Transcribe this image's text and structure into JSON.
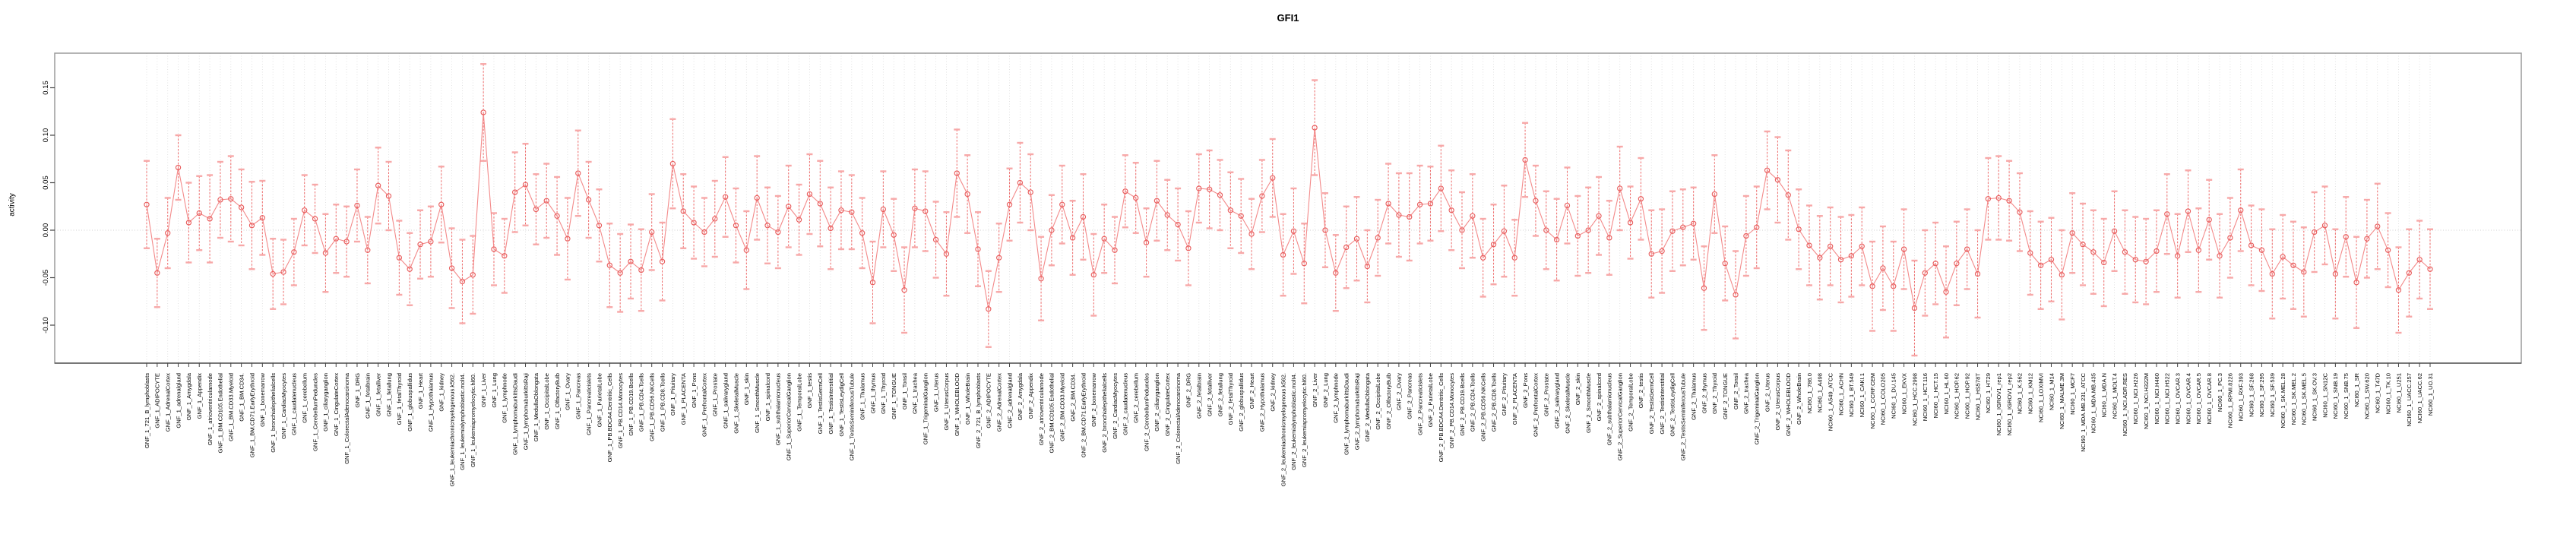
{
  "title": "GFI1",
  "y_axis": {
    "label": "activity",
    "tick_labels": [
      "0.15",
      "0.10",
      "0.05",
      "0.00",
      "-0.05",
      "-0.10"
    ],
    "tick_values": [
      0.15,
      0.1,
      0.05,
      0.0,
      -0.05,
      -0.1
    ]
  },
  "colors": {
    "point": "#e85c5c",
    "line": "#f38a8a",
    "errorbar": "#ef6a6a",
    "errorbar_cap": "#f7a8a8",
    "gridline": "#dcdcdc",
    "zero_line": "#d0d0d0",
    "box_border": "#9b9b9b",
    "axis": "#444444",
    "text": "#000000"
  },
  "chart_data": {
    "type": "line",
    "subtype": "points-with-error-bars",
    "title": "GFI1",
    "xlabel": "",
    "ylabel": "activity",
    "ylim": [
      -0.14,
      0.186
    ],
    "yticks": [
      0.15,
      0.1,
      0.05,
      0.0,
      -0.05,
      -0.1
    ],
    "grid": "vertical-dotted-per-sample",
    "zero_line": true,
    "legend": "none",
    "categories": [
      "GNF_1_721_B_lymphoblasts",
      "GNF_1_ADIPOCYTE",
      "GNF_1_AdrenalCortex",
      "GNF_1_adrenalgland",
      "GNF_1_Amygdala",
      "GNF_1_Appendix",
      "GNF_1_atrioventricularnode",
      "GNF_1_BM.CD105.Endothelial",
      "GNF_1_BM.CD33.Myeloid",
      "GNF_1_BM.CD34.",
      "GNF_1_BM.CD71.EarlyErythroid",
      "GNF_1_bonemarrow",
      "GNF_1_bronchialepithelialcells",
      "GNF_1_CardiacMyocytes",
      "GNF_1_caudatenucleus",
      "GNF_1_cerebellum",
      "GNF_1_CerebellumPeduncles",
      "GNF_1_ciliaryganglion",
      "GNF_1_CingulateCortex",
      "GNF_1_ColorectalAdenocarcinoma",
      "GNF_1_DRG",
      "GNF_1_fetalbrain",
      "GNF_1_fetalliver",
      "GNF_1_fetallung",
      "GNF_1_fetalThyroid",
      "GNF_1_globuspallidus",
      "GNF_1_Heart",
      "GNF_1_Hypothalamus",
      "GNF_1_kidney",
      "GNF_1_leukemiachronicmyelogenous.k562.",
      "GNF_1_leukemialymphoblastic.molt4.",
      "GNF_1_leukemiapromyelocytic.hl60.",
      "GNF_1_Liver",
      "GNF_1_Lung",
      "GNF_1_lymphnode",
      "GNF_1_lymphomaburkittsDaudi",
      "GNF_1_lymphomaburkittsRaji",
      "GNF_1_MedullaOblongata",
      "GNF_1_OccipitalLobe",
      "GNF_1_OlfactoryBulb",
      "GNF_1_Ovary",
      "GNF_1_Pancreas",
      "GNF_1_Pancreaticislets",
      "GNF_1_ParietalLobe",
      "GNF_1_PB.BDCA4.Dentritic_Cells",
      "GNF_1_PB.CD14.Monocytes",
      "GNF_1_PB.CD19.Bcells",
      "GNF_1_PB.CD4.Tcells",
      "GNF_1_PB.CD56.NKCells",
      "GNF_1_PB.CD8.Tcells",
      "GNF_1_Pituitary",
      "GNF_1_PLACENTA",
      "GNF_1_Pons",
      "GNF_1_PrefrontalCortex",
      "GNF_1_Prostate",
      "GNF_1_salivarygland",
      "GNF_1_SkeletalMuscle",
      "GNF_1_skin",
      "GNF_1_SmoothMuscle",
      "GNF_1_spinalcord",
      "GNF_1_subthalamicnucleus",
      "GNF_1_SuperiorCervicalGanglion",
      "GNF_1_TemporalLobe",
      "GNF_1_testis",
      "GNF_1_TestisGermCell",
      "GNF_1_TestisInterstitial",
      "GNF_1_TestisLeydigCell",
      "GNF_1_TestisSeminiferousTubule",
      "GNF_1_Thalamus",
      "GNF_1_thymus",
      "GNF_1_Thyroid",
      "GNF_1_TONGUE",
      "GNF_1_Tonsil",
      "GNF_1_trachea",
      "GNF_1_TrigeminalGanglion",
      "GNF_1_Uterus",
      "GNF_1_UterusCorpus",
      "GNF_1_WHOLEBLOOD",
      "GNF_1_WholeBrain",
      "GNF_2_721_B_lymphoblasts",
      "GNF_2_ADIPOCYTE",
      "GNF_2_AdrenalCortex",
      "GNF_2_adrenalgland",
      "GNF_2_Amygdala",
      "GNF_2_Appendix",
      "GNF_2_atrioventricularnode",
      "GNF_2_BM.CD105.Endothelial",
      "GNF_2_BM.CD33.Myeloid",
      "GNF_2_BM.CD34.",
      "GNF_2_BM.CD71.EarlyErythroid",
      "GNF_2_bonemarrow",
      "GNF_2_bronchialepithelialcells",
      "GNF_2_CardiacMyocytes",
      "GNF_2_caudatenucleus",
      "GNF_2_cerebellum",
      "GNF_2_CerebellumPeduncles",
      "GNF_2_ciliaryganglion",
      "GNF_2_CingulateCortex",
      "GNF_2_ColorectalAdenocarcinoma",
      "GNF_2_DRG",
      "GNF_2_fetalbrain",
      "GNF_2_fetalliver",
      "GNF_2_fetallung",
      "GNF_2_fetalThyroid",
      "GNF_2_globuspallidus",
      "GNF_2_Heart",
      "GNF_2_Hypothalamus",
      "GNF_2_kidney",
      "GNF_2_leukemiachronicmyelogenous.k562.",
      "GNF_2_leukemialymphoblastic.molt4.",
      "GNF_2_leukemiapromyelocytic.hl60.",
      "GNF_2_Liver",
      "GNF_2_Lung",
      "GNF_2_lymphnode",
      "GNF_2_lymphomaburkittsDaudi",
      "GNF_2_lymphomaburkittsRaji",
      "GNF_2_MedullaOblongata",
      "GNF_2_OccipitalLobe",
      "GNF_2_OlfactoryBulb",
      "GNF_2_Ovary",
      "GNF_2_Pancreas",
      "GNF_2_Pancreaticislets",
      "GNF_2_ParietalLobe",
      "GNF_2_PB.BDCA4.Dentritic_Cells",
      "GNF_2_PB.CD14.Monocytes",
      "GNF_2_PB.CD19.Bcells",
      "GNF_2_PB.CD4.Tcells",
      "GNF_2_PB.CD56.NKCells",
      "GNF_2_PB.CD8.Tcells",
      "GNF_2_Pituitary",
      "GNF_2_PLACENTA",
      "GNF_2_Pons",
      "GNF_2_PrefrontalCortex",
      "GNF_2_Prostate",
      "GNF_2_salivarygland",
      "GNF_2_SkeletalMuscle",
      "GNF_2_skin",
      "GNF_2_SmoothMuscle",
      "GNF_2_spinalcord",
      "GNF_2_subthalamicnucleus",
      "GNF_2_SuperiorCervicalGanglion",
      "GNF_2_TemporalLobe",
      "GNF_2_testis",
      "GNF_2_TestisGermCell",
      "GNF_2_TestisInterstitial",
      "GNF_2_TestisLeydigCell",
      "GNF_2_TestisSeminiferousTubule",
      "GNF_2_Thalamus",
      "GNF_2_thymus",
      "GNF_2_Thyroid",
      "GNF_2_TONGUE",
      "GNF_2_Tonsil",
      "GNF_2_trachea",
      "GNF_2_TrigeminalGanglion",
      "GNF_2_Uterus",
      "GNF_2_UterusCorpus",
      "GNF_2_WHOLEBLOOD",
      "GNF_2_WholeBrain",
      "NCI60_1_786.0",
      "NCI60_1_A498",
      "NCI60_1_A549_ATCC",
      "NCI60_1_ACHN",
      "NCI60_1_BT.549",
      "NCI60_1_CAKI.1",
      "NCI60_1_CCRF.CEM",
      "NCI60_1_COLO205",
      "NCI60_1_DU.145",
      "NCI60_1_EKVX",
      "NCI60_1_HCC.2998",
      "NCI60_1_HCT.116",
      "NCI60_1_HCT.15",
      "NCI60_1_HL.60",
      "NCI60_1_HOP.62",
      "NCI60_1_HOP.92",
      "NCI60_1_HS578T",
      "NCI60_1_HT29",
      "NCI60_1_IGROV1_rep1",
      "NCI60_1_IGROV1_rep2",
      "NCI60_1_K.562",
      "NCI60_1_KM12",
      "NCI60_1_LOXIMVI",
      "NCI60_1_M14",
      "NCI60_1_MALME.3M",
      "NCI60_1_MCF7",
      "NCI60_1_MDA.MB.231_ATCC",
      "NCI60_1_MDA.MB.435",
      "NCI60_1_MDA.N",
      "NCI60_1_MOLT.4",
      "NCI60_1_NCI.ADR.RES",
      "NCI60_1_NCI.H226",
      "NCI60_1_NCI.H322M",
      "NCI60_1_NCI.H460",
      "NCI60_1_NCI.H522",
      "NCI60_1_OVCAR.3",
      "NCI60_1_OVCAR.4",
      "NCI60_1_OVCAR.5",
      "NCI60_1_OVCAR.8",
      "NCI60_1_PC.3",
      "NCI60_1_RPMI.8226",
      "NCI60_1_RXF.393",
      "NCI60_1_SF.268",
      "NCI60_1_SF.295",
      "NCI60_1_SF.539",
      "NCI60_1_SK.MEL.28",
      "NCI60_1_SK.MEL.2",
      "NCI60_1_SK.MEL.5",
      "NCI60_1_SK.OV.3",
      "NCI60_1_SN12C",
      "NCI60_1_SNB.19",
      "NCI60_1_SNB.75",
      "NCI60_1_SR",
      "NCI60_1_SW.620",
      "NCI60_1_T47D",
      "NCI60_1_TK.10",
      "NCI60_1_U251",
      "NCI60_1_UACC.257",
      "NCI60_1_UACC.62",
      "NCI60_1_UO.31"
    ],
    "values": [
      0.027,
      -0.045,
      -0.003,
      0.066,
      0.008,
      0.018,
      0.012,
      0.032,
      0.033,
      0.024,
      0.005,
      0.013,
      -0.046,
      -0.044,
      -0.023,
      0.021,
      0.012,
      -0.024,
      -0.009,
      -0.012,
      0.026,
      -0.021,
      0.047,
      0.036,
      -0.029,
      -0.041,
      -0.015,
      -0.012,
      0.027,
      -0.04,
      -0.054,
      -0.047,
      0.124,
      -0.02,
      -0.027,
      0.04,
      0.048,
      0.022,
      0.031,
      0.015,
      -0.009,
      0.06,
      0.032,
      0.005,
      -0.037,
      -0.045,
      -0.033,
      -0.042,
      -0.002,
      -0.033,
      0.07,
      0.02,
      0.008,
      -0.002,
      0.012,
      0.035,
      0.005,
      -0.021,
      0.034,
      0.005,
      -0.002,
      0.025,
      0.011,
      0.038,
      0.028,
      0.002,
      0.021,
      0.019,
      -0.003,
      -0.055,
      0.022,
      -0.005,
      -0.063,
      0.023,
      0.02,
      -0.01,
      -0.025,
      0.06,
      0.038,
      -0.02,
      -0.083,
      -0.029,
      0.027,
      0.05,
      0.04,
      -0.051,
      0.0,
      0.027,
      -0.008,
      0.014,
      -0.047,
      -0.009,
      -0.021,
      0.041,
      0.034,
      -0.013,
      0.031,
      0.016,
      0.006,
      -0.019,
      0.044,
      0.043,
      0.037,
      0.021,
      0.015,
      -0.004,
      0.036,
      0.055,
      -0.026,
      -0.001,
      -0.035,
      0.108,
      0.0,
      -0.045,
      -0.018,
      -0.009,
      -0.038,
      -0.008,
      0.028,
      0.016,
      0.014,
      0.027,
      0.028,
      0.044,
      0.021,
      0.0,
      0.015,
      -0.029,
      -0.015,
      -0.001,
      -0.029,
      0.074,
      0.031,
      0.0,
      -0.01,
      0.026,
      -0.006,
      0.0,
      0.015,
      -0.008,
      0.044,
      0.008,
      0.033,
      -0.025,
      -0.022,
      -0.001,
      0.003,
      0.007,
      -0.061,
      0.038,
      -0.035,
      -0.068,
      -0.006,
      0.003,
      0.063,
      0.053,
      0.037,
      0.001,
      -0.016,
      -0.029,
      -0.017,
      -0.031,
      -0.027,
      -0.017,
      -0.059,
      -0.04,
      -0.059,
      -0.02,
      -0.082,
      -0.045,
      -0.035,
      -0.065,
      -0.035,
      -0.02,
      -0.046,
      0.033,
      0.034,
      0.031,
      0.019,
      -0.024,
      -0.037,
      -0.031,
      -0.047,
      -0.003,
      -0.015,
      -0.023,
      -0.034,
      -0.001,
      -0.023,
      -0.031,
      -0.033,
      -0.022,
      0.017,
      -0.027,
      0.02,
      -0.021,
      0.011,
      -0.027,
      -0.008,
      0.021,
      -0.016,
      -0.021,
      -0.046,
      -0.028,
      -0.037,
      -0.044,
      -0.002,
      0.005,
      -0.046,
      -0.007,
      -0.055,
      -0.009,
      0.004,
      -0.021,
      -0.063,
      -0.045,
      -0.031,
      -0.041
    ],
    "errors": [
      0.046,
      0.036,
      0.037,
      0.034,
      0.042,
      0.039,
      0.046,
      0.04,
      0.045,
      0.04,
      0.046,
      0.039,
      0.037,
      0.034,
      0.035,
      0.037,
      0.036,
      0.041,
      0.036,
      0.037,
      0.038,
      0.035,
      0.04,
      0.036,
      0.039,
      0.038,
      0.036,
      0.037,
      0.04,
      0.042,
      0.044,
      0.041,
      0.051,
      0.038,
      0.039,
      0.042,
      0.043,
      0.037,
      0.039,
      0.041,
      0.043,
      0.045,
      0.04,
      0.038,
      0.044,
      0.041,
      0.039,
      0.043,
      0.04,
      0.041,
      0.047,
      0.039,
      0.038,
      0.036,
      0.04,
      0.042,
      0.039,
      0.041,
      0.044,
      0.04,
      0.038,
      0.043,
      0.037,
      0.042,
      0.045,
      0.043,
      0.041,
      0.039,
      0.037,
      0.043,
      0.04,
      0.038,
      0.045,
      0.041,
      0.042,
      0.04,
      0.044,
      0.046,
      0.041,
      0.039,
      0.04,
      0.036,
      0.038,
      0.042,
      0.04,
      0.044,
      0.037,
      0.041,
      0.039,
      0.045,
      0.043,
      0.036,
      0.035,
      0.038,
      0.037,
      0.036,
      0.042,
      0.037,
      0.038,
      0.039,
      0.036,
      0.041,
      0.037,
      0.04,
      0.039,
      0.037,
      0.038,
      0.041,
      0.043,
      0.045,
      0.042,
      0.05,
      0.039,
      0.04,
      0.043,
      0.044,
      0.038,
      0.04,
      0.042,
      0.044,
      0.046,
      0.041,
      0.039,
      0.045,
      0.042,
      0.04,
      0.044,
      0.041,
      0.042,
      0.048,
      0.04,
      0.039,
      0.037,
      0.041,
      0.043,
      0.04,
      0.042,
      0.045,
      0.041,
      0.039,
      0.044,
      0.038,
      0.043,
      0.046,
      0.044,
      0.042,
      0.04,
      0.038,
      0.044,
      0.041,
      0.039,
      0.046,
      0.042,
      0.043,
      0.041,
      0.045,
      0.047,
      0.042,
      0.042,
      0.044,
      0.041,
      0.045,
      0.043,
      0.041,
      0.047,
      0.044,
      0.047,
      0.042,
      0.05,
      0.045,
      0.043,
      0.048,
      0.044,
      0.042,
      0.046,
      0.043,
      0.044,
      0.042,
      0.041,
      0.044,
      0.046,
      0.044,
      0.047,
      0.042,
      0.043,
      0.044,
      0.046,
      0.042,
      0.044,
      0.045,
      0.045,
      0.043,
      0.042,
      0.044,
      0.043,
      0.044,
      0.042,
      0.044,
      0.042,
      0.043,
      0.042,
      0.043,
      0.047,
      0.044,
      0.046,
      0.047,
      0.042,
      0.041,
      0.047,
      0.042,
      0.048,
      0.041,
      0.045,
      0.039,
      0.045,
      0.046,
      0.041,
      0.042
    ]
  }
}
